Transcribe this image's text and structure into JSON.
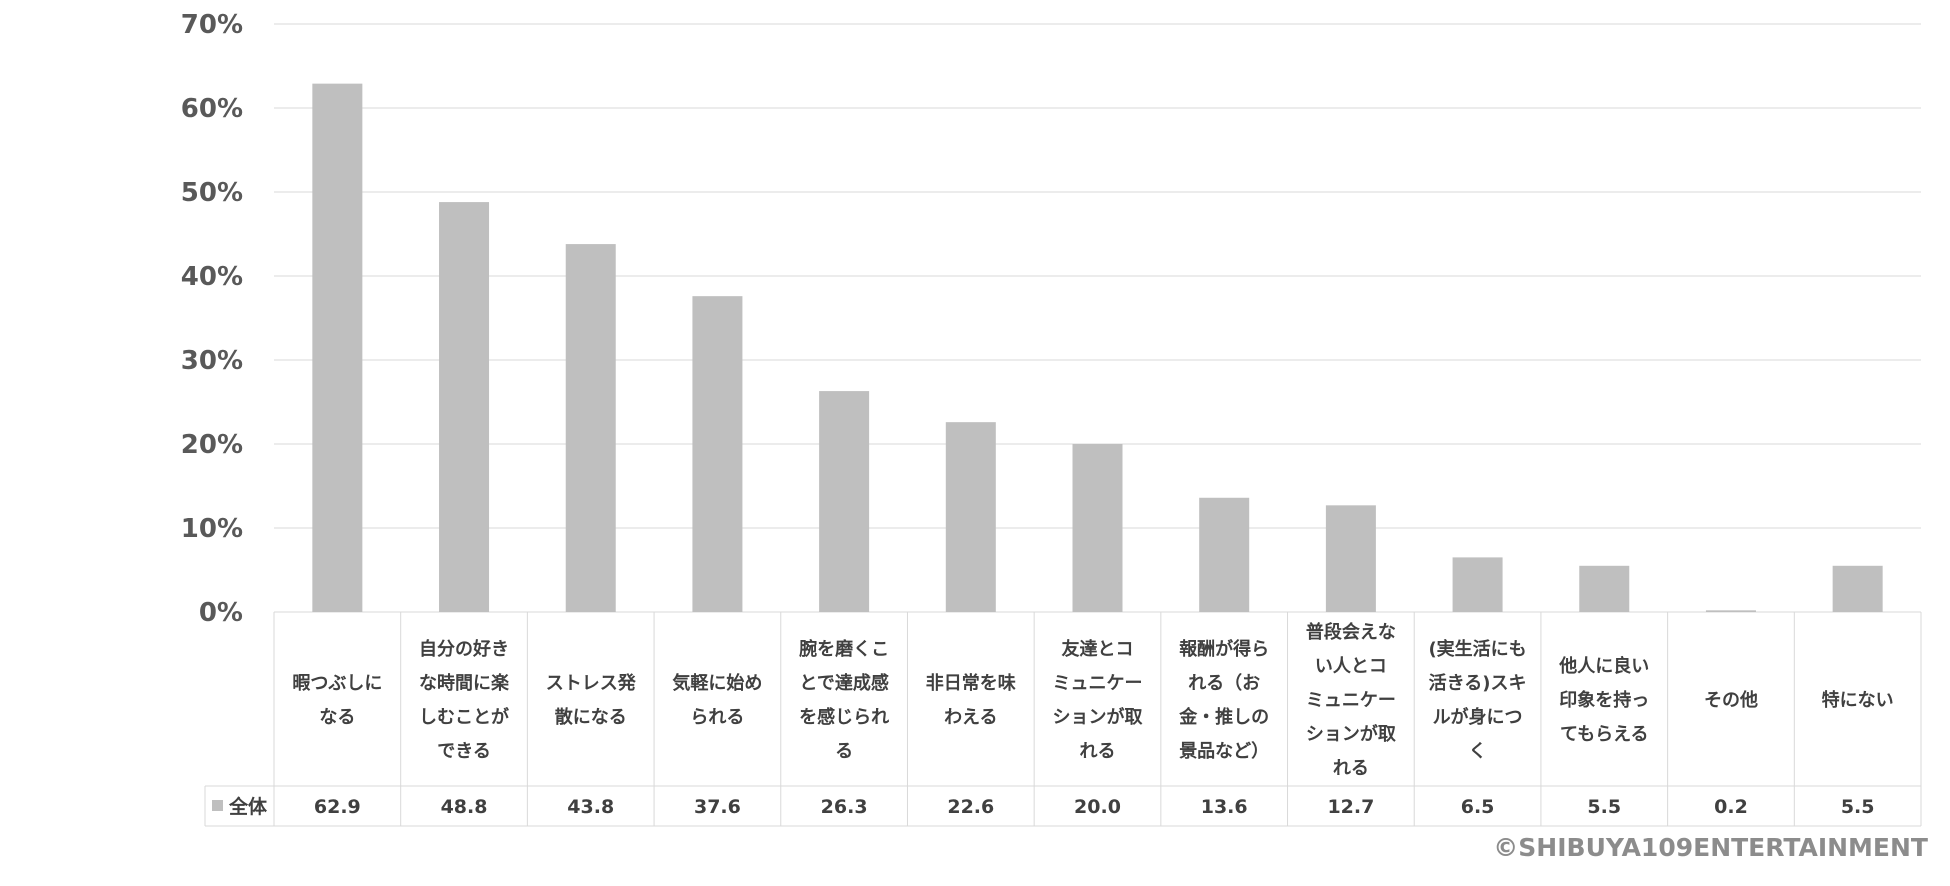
{
  "chart_data": {
    "type": "bar",
    "categories": [
      [
        "暇つぶしに",
        "なる"
      ],
      [
        "自分の好き",
        "な時間に楽",
        "しむことが",
        "できる"
      ],
      [
        "ストレス発",
        "散になる"
      ],
      [
        "気軽に始め",
        "られる"
      ],
      [
        "腕を磨くこ",
        "とで達成感",
        "を感じられ",
        "る"
      ],
      [
        "非日常を味",
        "わえる"
      ],
      [
        "友達とコ",
        "ミュニケー",
        "ションが取",
        "れる"
      ],
      [
        "報酬が得ら",
        "れる（お",
        "金・推しの",
        "景品など）"
      ],
      [
        "普段会えな",
        "い人とコ",
        "ミュニケー",
        "ションが取",
        "れる"
      ],
      [
        "(実生活にも",
        "活きる)スキ",
        "ルが身につ",
        "く"
      ],
      [
        "他人に良い",
        "印象を持っ",
        "てもらえる"
      ],
      [
        "その他"
      ],
      [
        "特にない"
      ]
    ],
    "series": [
      {
        "name": "全体",
        "values": [
          62.9,
          48.8,
          43.8,
          37.6,
          26.3,
          22.6,
          20.0,
          13.6,
          12.7,
          6.5,
          5.5,
          0.2,
          5.5
        ],
        "labels": [
          "62.9",
          "48.8",
          "43.8",
          "37.6",
          "26.3",
          "22.6",
          "20.0",
          "13.6",
          "12.7",
          "6.5",
          "5.5",
          "0.2",
          "5.5"
        ]
      }
    ],
    "ylim": [
      0,
      70
    ],
    "yticks": [
      "0%",
      "10%",
      "20%",
      "30%",
      "40%",
      "50%",
      "60%",
      "70%"
    ],
    "grid": true,
    "legend_placement": "data-table",
    "bar_color": "#bfbfbf",
    "grid_color": "#d9d9d9",
    "copyright": "©SHIBUYA109ENTERTAINMENT"
  }
}
